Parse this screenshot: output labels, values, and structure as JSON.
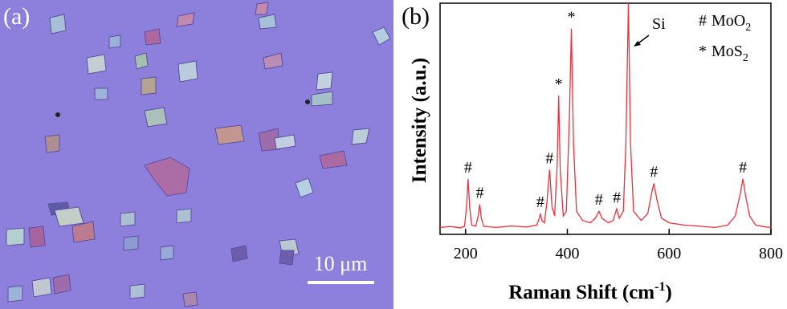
{
  "image_panel": {
    "label": "(a)",
    "scale_bar": "10 μm"
  },
  "chart_data": {
    "type": "line",
    "panel_label": "(b)",
    "x_label": {
      "text": "Raman Shift (cm",
      "superscript": "-1",
      "suffix": ")"
    },
    "y_label": "Intensity (a.u.)",
    "color": "#e8323c",
    "x": [
      150,
      170,
      190,
      198,
      202,
      205,
      208,
      212,
      220,
      225,
      228,
      231,
      236,
      260,
      290,
      320,
      340,
      345,
      347,
      350,
      355,
      360,
      365,
      370,
      375,
      380,
      383,
      386,
      392,
      398,
      404,
      408,
      412,
      418,
      430,
      445,
      455,
      462,
      468,
      480,
      490,
      497,
      502,
      510,
      515,
      520,
      524,
      530,
      545,
      558,
      565,
      570,
      576,
      585,
      600,
      630,
      660,
      690,
      715,
      730,
      740,
      745,
      750,
      758,
      770,
      790,
      800
    ],
    "values": [
      3,
      3.4,
      2.8,
      3.5,
      12,
      24,
      12,
      4,
      3.5,
      8,
      13,
      7,
      3.5,
      3,
      3.6,
      3.2,
      4,
      7,
      9,
      6,
      5,
      14,
      28,
      12,
      8,
      30,
      60,
      28,
      8,
      10,
      50,
      89,
      40,
      10,
      6,
      5,
      7,
      10,
      7,
      5,
      6,
      11,
      7,
      10,
      40,
      100,
      40,
      10,
      6,
      9,
      17,
      22,
      15,
      7,
      5,
      4,
      3.5,
      3,
      4,
      8,
      18,
      24,
      17,
      8,
      4,
      3.2,
      3
    ],
    "xlim": [
      150,
      800
    ],
    "xticks": [
      200,
      400,
      600,
      800
    ],
    "ylim": [
      0,
      100
    ],
    "annotations": [
      {
        "text": "#",
        "x": 205
      },
      {
        "text": "#",
        "x": 228
      },
      {
        "text": "#",
        "x": 347
      },
      {
        "text": "#",
        "x": 365
      },
      {
        "text": "*",
        "x": 383
      },
      {
        "text": "*",
        "x": 408
      },
      {
        "text": "#",
        "x": 462
      },
      {
        "text": "#",
        "x": 497
      },
      {
        "text": "#",
        "x": 570
      },
      {
        "text": "#",
        "x": 745
      }
    ],
    "si_annotation": "Si",
    "legend": [
      {
        "symbol": "#",
        "label": "MoO",
        "subscript": "2"
      },
      {
        "symbol": "*",
        "label": "MoS",
        "subscript": "2"
      }
    ]
  }
}
